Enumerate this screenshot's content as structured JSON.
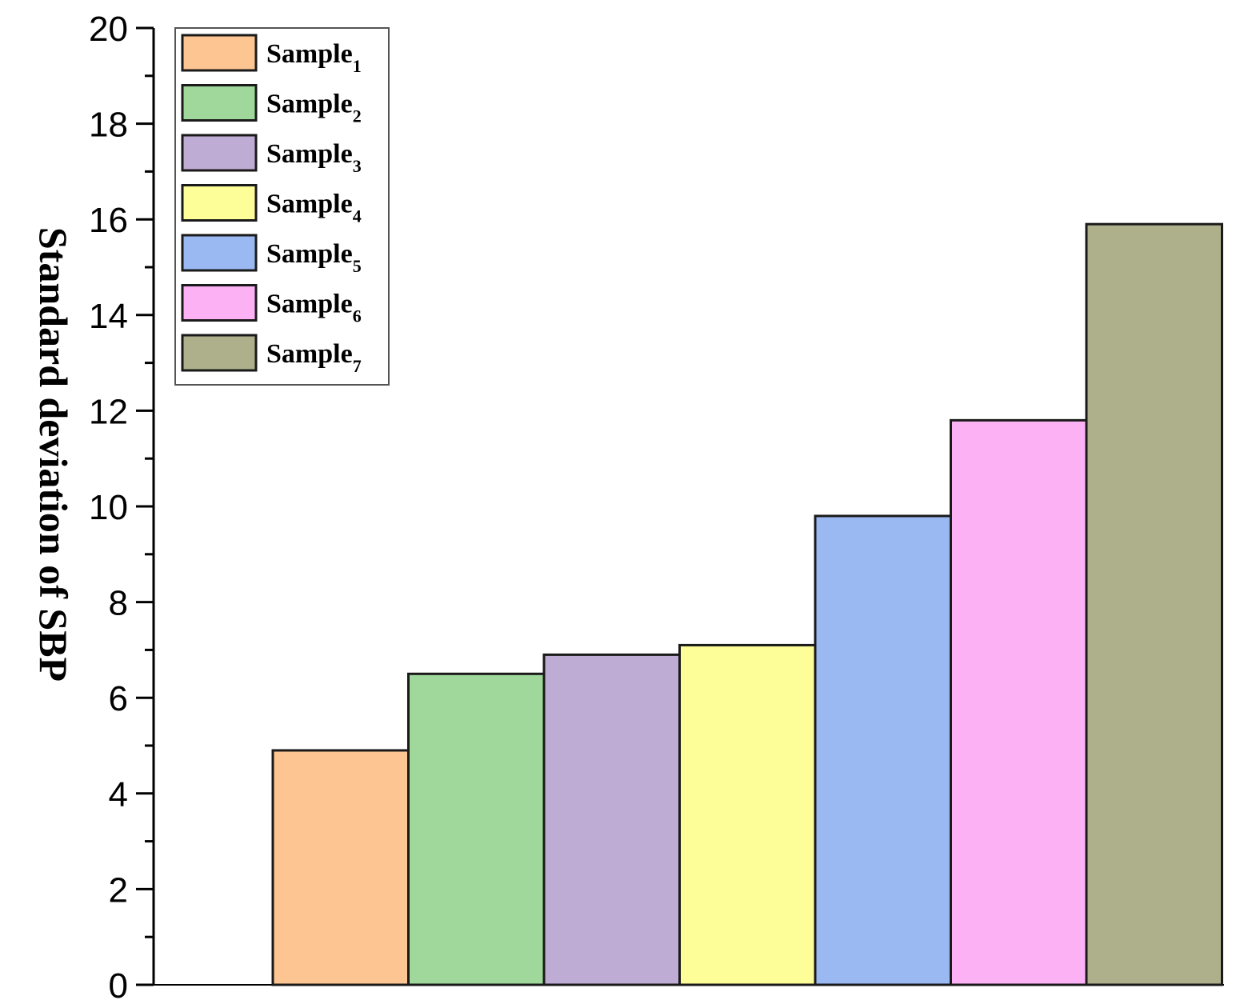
{
  "chart_data": {
    "type": "bar",
    "title": "",
    "xlabel": "",
    "ylabel": "Standard deviation of SBP",
    "ylim": [
      0,
      20
    ],
    "yticks": [
      "0",
      "2",
      "4",
      "6",
      "8",
      "10",
      "12",
      "14",
      "16",
      "18",
      "20"
    ],
    "legend_position": "top-left",
    "grid": false,
    "series": [
      {
        "name": "Sample",
        "subscript": "1",
        "value": 4.9,
        "color": "#FDC592"
      },
      {
        "name": "Sample",
        "subscript": "2",
        "value": 6.5,
        "color": "#9FD89A"
      },
      {
        "name": "Sample",
        "subscript": "3",
        "value": 6.9,
        "color": "#BFACD4"
      },
      {
        "name": "Sample",
        "subscript": "4",
        "value": 7.1,
        "color": "#FEFE99"
      },
      {
        "name": "Sample",
        "subscript": "5",
        "value": 9.8,
        "color": "#9AB9F2"
      },
      {
        "name": "Sample",
        "subscript": "6",
        "value": 11.8,
        "color": "#FCB1F5"
      },
      {
        "name": "Sample",
        "subscript": "7",
        "value": 15.9,
        "color": "#ADB08A"
      }
    ]
  }
}
